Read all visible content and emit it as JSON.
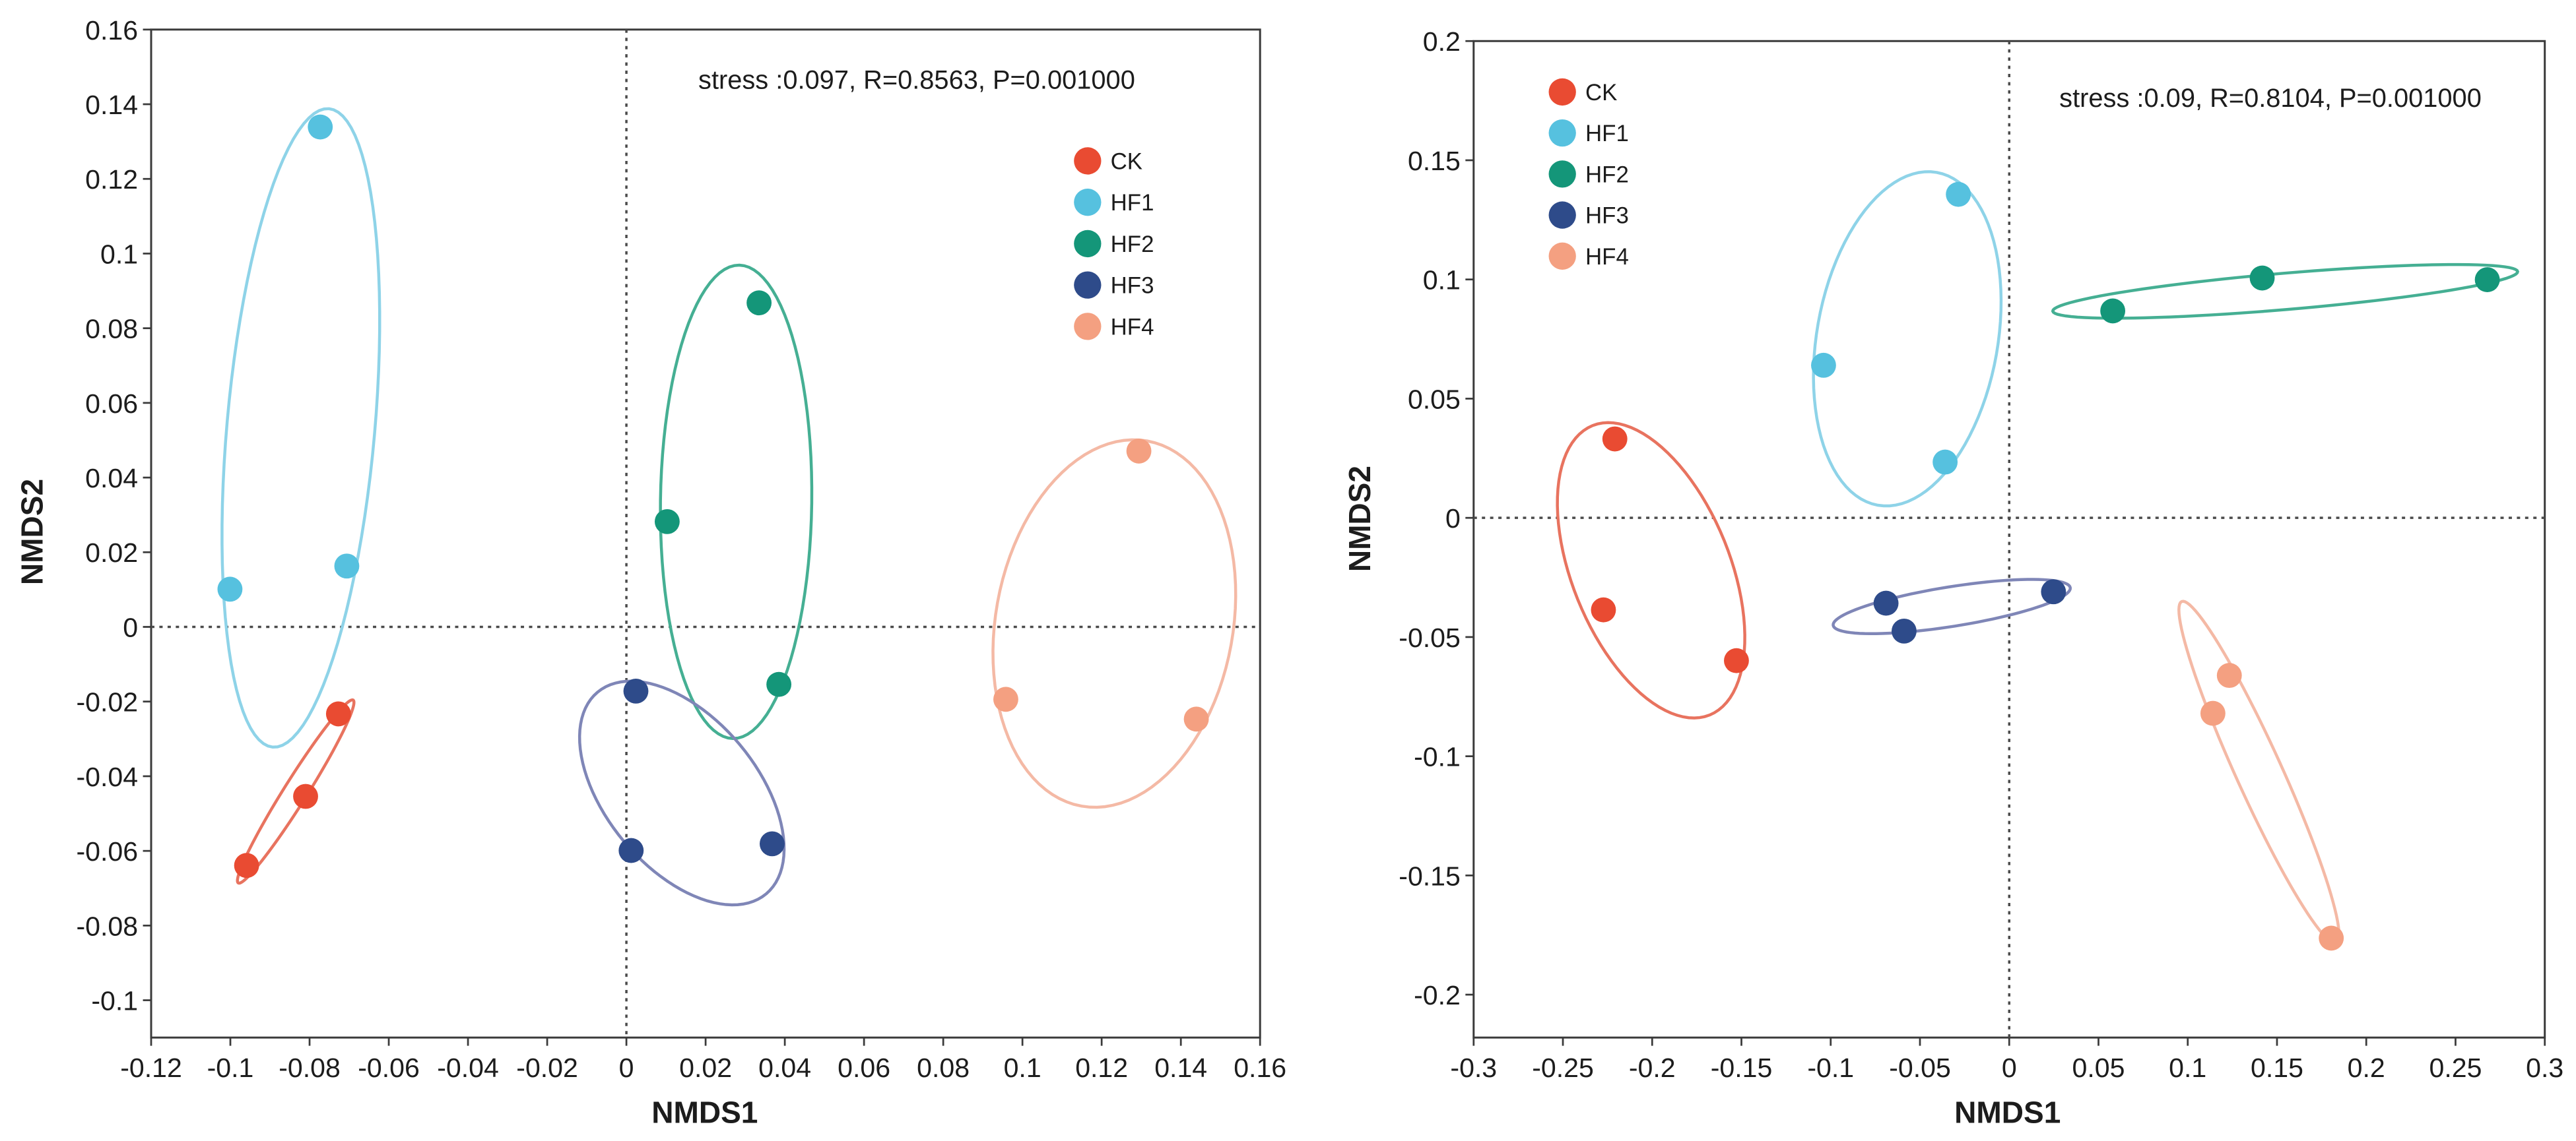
{
  "chart_data": [
    {
      "type": "scatter",
      "annotation": "stress :0.097, R=0.8563, P=0.001000",
      "xlabel": "NMDS1",
      "ylabel": "NMDS2",
      "xlim": [
        -0.12,
        0.16
      ],
      "ylim": [
        -0.11,
        0.16
      ],
      "xtick_labels": [
        "-0.12",
        "-0.1",
        "-0.08",
        "-0.06",
        "-0.04",
        "-0.02",
        "0",
        "0.02",
        "0.04",
        "0.06",
        "0.08",
        "0.1",
        "0.12",
        "0.14",
        "0.16"
      ],
      "ytick_labels": [
        "0.16",
        "0.14",
        "0.12",
        "0.1",
        "0.08",
        "0.06",
        "0.04",
        "0.02",
        "0",
        "-0.02",
        "-0.04",
        "-0.06",
        "-0.08",
        "-0.1"
      ],
      "reference_lines": {
        "x": 0,
        "y": 0
      },
      "grid": false,
      "legend_position": "upper-right",
      "series": [
        {
          "name": "CK",
          "color": "#e94b32",
          "ellipse_color": "#e8735f",
          "points": [
            [
              -0.0959,
              -0.0639
            ],
            [
              -0.081,
              -0.0454
            ],
            [
              -0.0727,
              -0.0233
            ]
          ],
          "ellipse": {
            "center": [
              -0.0835,
              -0.0441
            ],
            "axis_a": [
              0.0145,
              0.0245
            ],
            "axis_b": [
              0.0025,
              -0.0016
            ]
          }
        },
        {
          "name": "HF1",
          "color": "#56c1df",
          "ellipse_color": "#8ed3e8",
          "points": [
            [
              -0.0773,
              0.1339
            ],
            [
              -0.1001,
              0.0101
            ],
            [
              -0.0706,
              0.0163
            ]
          ],
          "ellipse": {
            "center": [
              -0.0822,
              0.0533
            ],
            "axis_a": [
              0.0071,
              0.0855
            ],
            "axis_b": [
              0.0186,
              -0.0017
            ]
          }
        },
        {
          "name": "HF2",
          "color": "#149679",
          "ellipse_color": "#45af93",
          "points": [
            [
              0.0335,
              0.0868
            ],
            [
              0.0103,
              0.0282
            ],
            [
              0.0385,
              -0.0154
            ]
          ],
          "ellipse": {
            "center": [
              0.0277,
              0.0335
            ],
            "axis_a": [
              0.0008,
              0.0634
            ],
            "axis_b": [
              0.0191,
              -0.0003
            ]
          }
        },
        {
          "name": "HF3",
          "color": "#2e4b8a",
          "ellipse_color": "#7f86b7",
          "points": [
            [
              0.0024,
              -0.0172
            ],
            [
              0.0012,
              -0.0599
            ],
            [
              0.0368,
              -0.0581
            ]
          ],
          "ellipse": {
            "center": [
              0.014,
              -0.0445
            ],
            "axis_a": [
              0.0213,
              -0.027
            ],
            "axis_b": [
              -0.0146,
              -0.013
            ]
          }
        },
        {
          "name": "HF4",
          "color": "#f4a081",
          "ellipse_color": "#f4b9a5",
          "points": [
            [
              0.1294,
              0.0471
            ],
            [
              0.0958,
              -0.0194
            ],
            [
              0.1439,
              -0.0247
            ]
          ],
          "ellipse": {
            "center": [
              0.1232,
              0.0009
            ],
            "axis_a": [
              0.0083,
              0.0489
            ],
            "axis_b": [
              0.0295,
              -0.0056
            ]
          }
        }
      ]
    },
    {
      "type": "scatter",
      "annotation": "stress :0.09, R=0.8104, P=0.001000",
      "xlabel": "NMDS1",
      "ylabel": "NMDS2",
      "xlim": [
        -0.3,
        0.3
      ],
      "ylim": [
        -0.218,
        0.2
      ],
      "xtick_labels": [
        "-0.3",
        "-0.25",
        "-0.2",
        "-0.15",
        "-0.1",
        "-0.05",
        "0",
        "0.05",
        "0.1",
        "0.15",
        "0.2",
        "0.25",
        "0.3"
      ],
      "ytick_labels": [
        "0.2",
        "0.15",
        "0.1",
        "0.05",
        "0",
        "-0.05",
        "-0.1",
        "-0.15",
        "-0.2"
      ],
      "reference_lines": {
        "x": 0,
        "y": 0
      },
      "grid": false,
      "legend_position": "upper-left",
      "series": [
        {
          "name": "CK",
          "color": "#e94b32",
          "ellipse_color": "#e8735f",
          "points": [
            [
              -0.2209,
              0.0331
            ],
            [
              -0.2273,
              -0.0386
            ],
            [
              -0.1528,
              -0.0599
            ]
          ],
          "ellipse": {
            "center": [
              -0.2006,
              -0.022
            ],
            "axis_a": [
              0.0328,
              -0.0607
            ],
            "axis_b": [
              0.041,
              0.0124
            ]
          }
        },
        {
          "name": "HF1",
          "color": "#56c1df",
          "ellipse_color": "#8ed3e8",
          "points": [
            [
              -0.0285,
              0.1357
            ],
            [
              -0.104,
              0.064
            ],
            [
              -0.0359,
              0.0234
            ]
          ],
          "ellipse": {
            "center": [
              -0.0571,
              0.0751
            ],
            "axis_a": [
              0.0165,
              0.0698
            ],
            "axis_b": [
              0.0499,
              -0.0066
            ]
          }
        },
        {
          "name": "HF2",
          "color": "#149679",
          "ellipse_color": "#45af93",
          "points": [
            [
              0.058,
              0.0868
            ],
            [
              0.1417,
              0.1006
            ],
            [
              0.2678,
              0.0999
            ]
          ],
          "ellipse": {
            "center": [
              0.1546,
              0.095
            ],
            "axis_a": [
              0.1302,
              0.0083
            ],
            "axis_b": [
              0.0009,
              -0.0076
            ]
          }
        },
        {
          "name": "HF3",
          "color": "#2e4b8a",
          "ellipse_color": "#7f86b7",
          "points": [
            [
              -0.069,
              -0.0358
            ],
            [
              -0.0589,
              -0.0475
            ],
            [
              0.0248,
              -0.031
            ]
          ],
          "ellipse": {
            "center": [
              -0.0322,
              -0.0372
            ],
            "axis_a": [
              0.0664,
              0.0079
            ],
            "axis_b": [
              0.0018,
              -0.0082
            ]
          }
        },
        {
          "name": "HF4",
          "color": "#f4a081",
          "ellipse_color": "#f4b9a5",
          "points": [
            [
              0.1233,
              -0.0661
            ],
            [
              0.1141,
              -0.082
            ],
            [
              0.1804,
              -0.1763
            ]
          ],
          "ellipse": {
            "center": [
              0.1399,
              -0.1067
            ],
            "axis_a": [
              0.0433,
              -0.0716
            ],
            "axis_b": [
              0.0117,
              0.004
            ]
          }
        }
      ]
    }
  ]
}
